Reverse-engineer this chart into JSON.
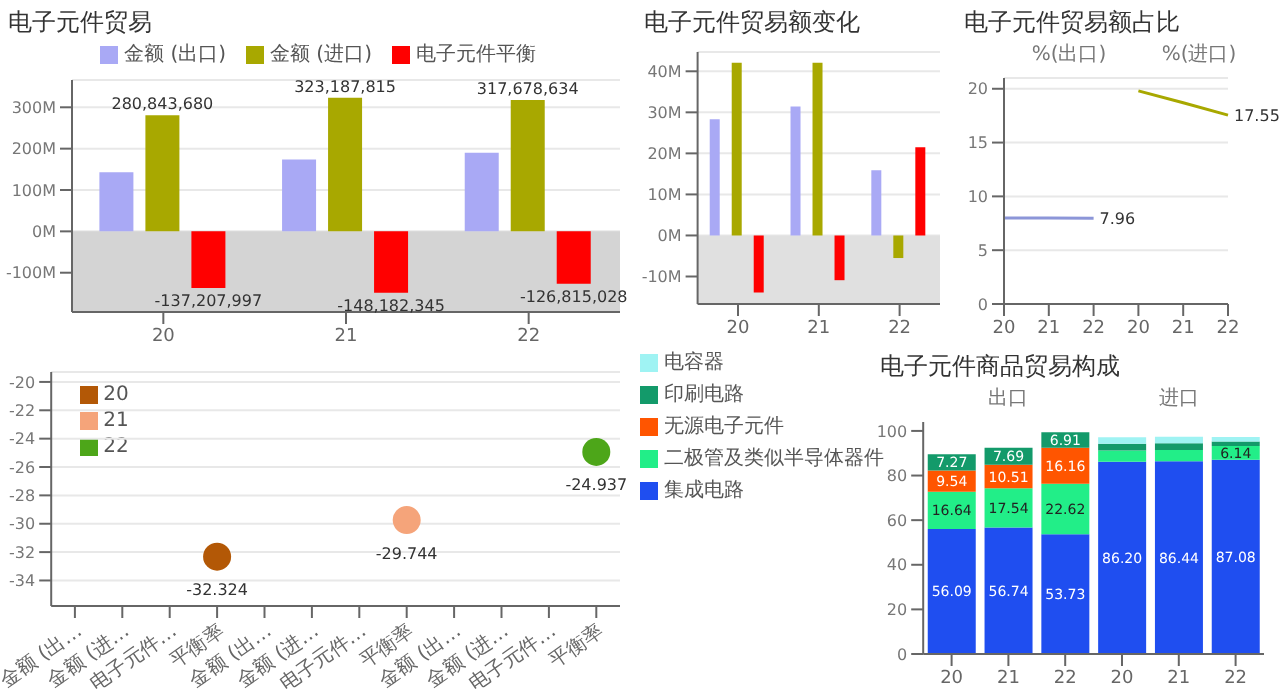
{
  "chart_data": [
    {
      "type": "bar",
      "title": "电子元件贸易",
      "categories": [
        "20",
        "21",
        "22"
      ],
      "series": [
        {
          "name": "金额 (出口)",
          "color": "#a9a9f5",
          "values": [
            143000000,
            174000000,
            190000000
          ]
        },
        {
          "name": "金额 (进口)",
          "color": "#a8a800",
          "values": [
            280843680,
            323187815,
            317678634
          ],
          "value_labels": [
            "280,843,680",
            "323,187,815",
            "317,678,634"
          ]
        },
        {
          "name": "电子元件平衡",
          "color": "#ff0000",
          "values": [
            -137207997,
            -148182345,
            -126815028
          ],
          "value_labels": [
            "-137,207,997",
            "-148,182,345",
            "-126,815,028"
          ]
        }
      ],
      "ylim": [
        -195000000,
        366000000
      ],
      "yticks": [
        {
          "value": -100000000,
          "label": "-100M"
        },
        {
          "value": 0,
          "label": "0M"
        },
        {
          "value": 100000000,
          "label": "100M"
        },
        {
          "value": 200000000,
          "label": "200M"
        },
        {
          "value": 300000000,
          "label": "300M"
        }
      ],
      "grid": "y",
      "legend": "top",
      "bands": [
        {
          "axis": "y",
          "from": -195000000,
          "to": 0,
          "color": "#d4d4d4"
        }
      ]
    },
    {
      "type": "scatter",
      "categories": [
        "金额 (出…",
        "金额 (进…",
        "电子元件…",
        "平衡率",
        "金额 (出…",
        "金额 (进…",
        "电子元件…",
        "平衡率",
        "金额 (出…",
        "金额 (进…",
        "电子元件…",
        "平衡率"
      ],
      "series": [
        {
          "name": "20",
          "color": "#b35806",
          "values": [
            null,
            null,
            null,
            -32.324,
            null,
            null,
            null,
            null,
            null,
            null,
            null,
            null
          ]
        },
        {
          "name": "21",
          "color": "#f5a47a",
          "values": [
            null,
            null,
            null,
            null,
            null,
            null,
            null,
            -29.744,
            null,
            null,
            null,
            null
          ]
        },
        {
          "name": "22",
          "color": "#4da619",
          "values": [
            null,
            null,
            null,
            null,
            null,
            null,
            null,
            null,
            null,
            null,
            null,
            -24.937
          ]
        }
      ],
      "ylim": [
        -35.8,
        -19.3
      ],
      "yticks": [
        -34,
        -32,
        -30,
        -28,
        -26,
        -24,
        -22,
        -20
      ],
      "grid": "y",
      "legend": "top left",
      "data_labels": true
    },
    {
      "type": "bar",
      "title": "电子元件贸易额变化",
      "categories": [
        "20",
        "21",
        "22"
      ],
      "series": [
        {
          "color": "#a9a9f5",
          "values": [
            28300000,
            31400000,
            15900000
          ]
        },
        {
          "color": "#a8a800",
          "values": [
            42100000,
            42100000,
            -5500000
          ]
        },
        {
          "color": "#ff0000",
          "values": [
            -13900000,
            -10900000,
            21500000
          ]
        }
      ],
      "ylim": [
        -16700000,
        44700000
      ],
      "yticks": [
        {
          "value": -10000000,
          "label": "-10M"
        },
        {
          "value": 0,
          "label": "0M"
        },
        {
          "value": 10000000,
          "label": "10M"
        },
        {
          "value": 20000000,
          "label": "20M"
        },
        {
          "value": 30000000,
          "label": "30M"
        },
        {
          "value": 40000000,
          "label": "40M"
        }
      ],
      "grid": "y",
      "bands": [
        {
          "axis": "y",
          "from": -16700000,
          "to": 0,
          "color": "#e0e0e0"
        }
      ]
    },
    {
      "type": "line",
      "title": "电子元件贸易额占比",
      "categories": [
        "20",
        "21",
        "22",
        "20",
        "21",
        "22"
      ],
      "series": [
        {
          "color": "#8c96d8",
          "values": [
            8.0,
            8.0,
            7.96,
            null,
            null,
            null
          ],
          "value_labels": [
            null,
            null,
            "7.96",
            null,
            null,
            null
          ]
        },
        {
          "color": "#a8a800",
          "values": [
            null,
            null,
            null,
            19.8,
            18.7,
            17.55
          ],
          "value_labels": [
            null,
            null,
            null,
            null,
            null,
            "17.55"
          ]
        }
      ],
      "ylim": [
        0,
        21
      ],
      "yticks": [
        0,
        5,
        10,
        15,
        20
      ],
      "grid": "y",
      "annotations": [
        "%(出口)",
        "%(进口)"
      ]
    },
    {
      "type": "bar",
      "title": "电子元件商品贸易构成",
      "stacked": true,
      "categories": [
        "20",
        "21",
        "22",
        "20",
        "21",
        "22"
      ],
      "series": [
        {
          "name": "集成电路",
          "color": "#1f4ef0",
          "values": [
            56.09,
            56.74,
            53.73,
            86.2,
            86.44,
            87.08
          ],
          "value_labels": [
            "56.09",
            "56.74",
            "53.73",
            "86.20",
            "86.44",
            "87.08"
          ]
        },
        {
          "name": "二极管及类似半导体器件",
          "color": "#22ee88",
          "values": [
            16.64,
            17.54,
            22.62,
            5,
            5,
            6.14
          ],
          "value_labels": [
            "16.64",
            "17.54",
            "22.62",
            null,
            null,
            "6.14"
          ]
        },
        {
          "name": "无源电子元件",
          "color": "#ff5500",
          "values": [
            9.54,
            10.51,
            16.16,
            0,
            0,
            0
          ],
          "value_labels": [
            "9.54",
            "10.51",
            "16.16",
            null,
            null,
            null
          ]
        },
        {
          "name": "印刷电路",
          "color": "#139a6a",
          "values": [
            7.27,
            7.69,
            6.91,
            3,
            3,
            2
          ],
          "value_labels": [
            "7.27",
            "7.69",
            "6.91",
            null,
            null,
            null
          ]
        },
        {
          "name": "电容器",
          "color": "#9ff3f3",
          "values": [
            0,
            0,
            0,
            3,
            3,
            2
          ]
        }
      ],
      "ylim": [
        0,
        104
      ],
      "yticks": [
        0,
        20,
        40,
        60,
        80,
        100
      ],
      "legend": "left",
      "annotations": [
        "出口",
        "进口"
      ]
    }
  ]
}
